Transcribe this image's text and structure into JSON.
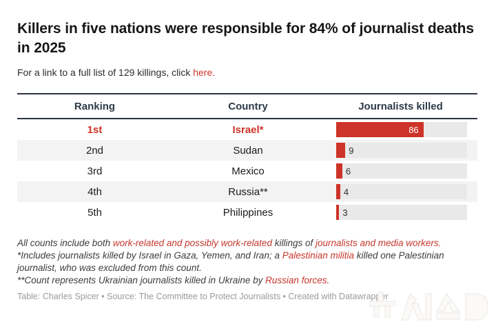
{
  "title": "Killers in five nations were responsible for 84% of journalist deaths in 2025",
  "subtitle": {
    "prefix": "For a link to a full list of 129 killings, click ",
    "link": "here."
  },
  "table": {
    "columns": [
      "Ranking",
      "Country",
      "Journalists killed"
    ],
    "rows": [
      {
        "ranking": "1st",
        "country": "Israel*",
        "value": 86,
        "emphasized": true
      },
      {
        "ranking": "2nd",
        "country": "Sudan",
        "value": 9,
        "emphasized": false
      },
      {
        "ranking": "3rd",
        "country": "Mexico",
        "value": 6,
        "emphasized": false
      },
      {
        "ranking": "4th",
        "country": "Russia**",
        "value": 4,
        "emphasized": false
      },
      {
        "ranking": "5th",
        "country": "Philippines",
        "value": 3,
        "emphasized": false
      }
    ]
  },
  "chart_data": {
    "type": "table",
    "title": "Killers in five nations were responsible for 84% of journalist deaths in 2025",
    "columns": [
      "Ranking",
      "Country",
      "Journalists killed"
    ],
    "rankings": [
      "1st",
      "2nd",
      "3rd",
      "4th",
      "5th"
    ],
    "categories": [
      "Israel*",
      "Sudan",
      "Mexico",
      "Russia**",
      "Philippines"
    ],
    "values": [
      86,
      9,
      6,
      4,
      3
    ],
    "bar_scale_max": 129,
    "bar_color": "#cd3328",
    "highlighted_row": "Israel*"
  },
  "footnotes": [
    [
      {
        "text": "All counts include both ",
        "red": false
      },
      {
        "text": "work-related and possibly work-related",
        "red": true
      },
      {
        "text": " killings of ",
        "red": false
      },
      {
        "text": "journalists and media workers.",
        "red": true
      }
    ],
    [
      {
        "text": "*Includes journalists killed by Israel in Gaza, Yemen, and Iran; a ",
        "red": false
      },
      {
        "text": "Palestinian militia",
        "red": true
      },
      {
        "text": " killed one Palestinian journalist, who was excluded from this count.",
        "red": false
      }
    ],
    [
      {
        "text": "**Count represents Ukrainian journalists killed in Ukraine by ",
        "red": false
      },
      {
        "text": "Russian forces.",
        "red": true
      }
    ]
  ],
  "caption": "Table: Charles Spicer • Source: The Committee to Protect Journalists • Created with Datawrapper",
  "watermark": {
    "text": "뉴시스",
    "name": "Newsis logo"
  },
  "colors": {
    "accent_red": "#cd3328",
    "header_text": "#2e3a48",
    "border_dark": "#2a323e",
    "bar_track": "#e9e9e9",
    "row_stripe": "#f3f3f3",
    "caption_gray": "#9a9a9a"
  }
}
